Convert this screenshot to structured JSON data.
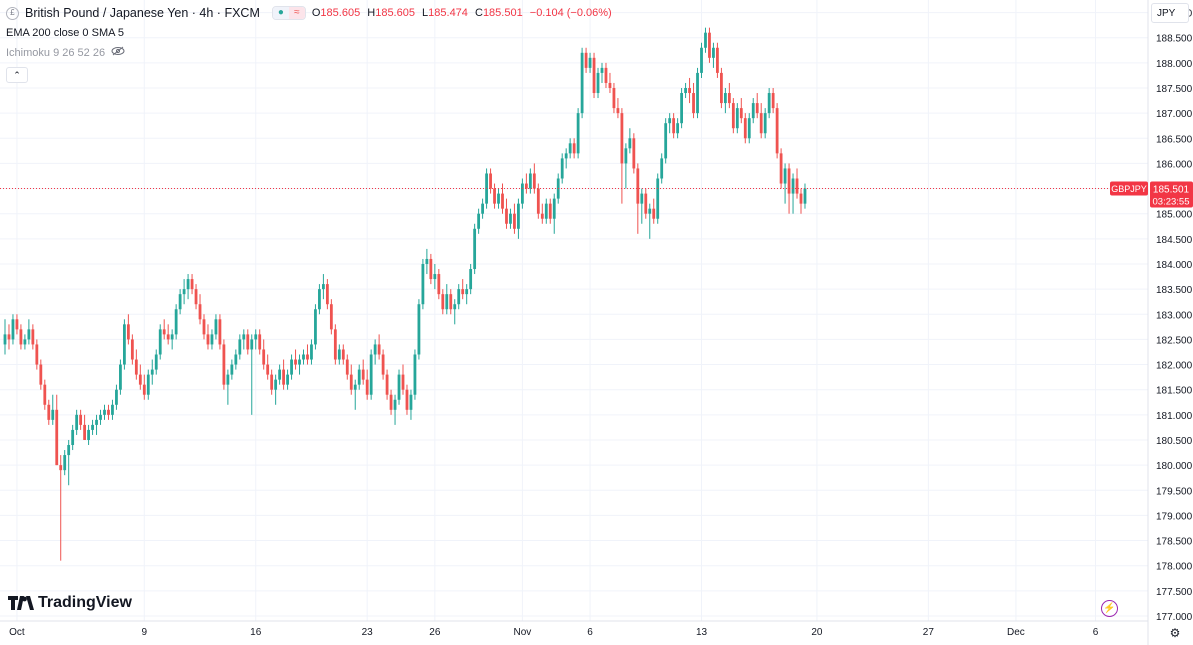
{
  "header": {
    "symbol_logo": "£",
    "title": "British Pound / Japanese Yen · 4h · FXCM",
    "ohlc": {
      "o_label": "O",
      "o": "185.605",
      "h_label": "H",
      "h": "185.605",
      "l_label": "L",
      "l": "185.474",
      "c_label": "C",
      "c": "185.501",
      "change": "−0.104 (−0.06%)"
    },
    "indicator_1": "EMA 200 close 0 SMA 5",
    "indicator_2": "Ichimoku 9 26 52 26",
    "collapse_glyph": "⌃"
  },
  "currency_selector": "JPY",
  "branding": "TradingView",
  "price_tag": {
    "symbol": "GBPJPY",
    "price": "185.501",
    "countdown": "03:23:55"
  },
  "colors": {
    "up": "#26a69a",
    "down": "#ef5350",
    "price_line": "#f23645",
    "grid": "#f0f3fa",
    "axis_text": "#131722"
  },
  "icons": {
    "settings": "gear-icon",
    "lightning": "lightning-icon",
    "visibility": "eye-off-icon"
  },
  "chart_data": {
    "type": "candlestick",
    "title": "British Pound / Japanese Yen · 4h · FXCM",
    "y_axis": {
      "ticks": [
        "189.000",
        "188.500",
        "188.000",
        "187.500",
        "187.000",
        "186.500",
        "186.000",
        "185.500",
        "185.000",
        "184.500",
        "184.000",
        "183.500",
        "183.000",
        "182.500",
        "182.000",
        "181.500",
        "181.000",
        "180.500",
        "180.000",
        "179.500",
        "179.000",
        "178.500",
        "178.000",
        "177.500",
        "177.000"
      ],
      "range": [
        176.9,
        189.25
      ]
    },
    "x_axis": {
      "labels": [
        "Oct",
        "9",
        "16",
        "23",
        "26",
        "Nov",
        "6",
        "13",
        "20",
        "27",
        "Dec",
        "6"
      ],
      "label_bars": [
        3,
        35,
        63,
        91,
        108,
        130,
        147,
        175,
        204,
        232,
        254,
        274
      ]
    },
    "last_price": 185.501,
    "candles": [
      [
        182.4,
        182.9,
        182.2,
        182.6
      ],
      [
        182.6,
        182.8,
        182.3,
        182.5
      ],
      [
        182.5,
        183.0,
        182.4,
        182.9
      ],
      [
        182.9,
        183.0,
        182.6,
        182.7
      ],
      [
        182.7,
        182.8,
        182.3,
        182.4
      ],
      [
        182.4,
        182.6,
        182.3,
        182.5
      ],
      [
        182.5,
        182.9,
        182.4,
        182.7
      ],
      [
        182.7,
        182.8,
        182.3,
        182.4
      ],
      [
        182.4,
        182.5,
        181.9,
        182.0
      ],
      [
        182.0,
        182.1,
        181.5,
        181.6
      ],
      [
        181.6,
        181.7,
        181.1,
        181.2
      ],
      [
        181.2,
        181.3,
        180.8,
        180.9
      ],
      [
        180.9,
        181.4,
        180.8,
        181.1
      ],
      [
        181.1,
        181.4,
        180.0,
        180.0
      ],
      [
        180.0,
        180.2,
        178.1,
        179.9
      ],
      [
        179.9,
        180.3,
        179.8,
        180.2
      ],
      [
        180.2,
        180.5,
        179.6,
        180.4
      ],
      [
        180.4,
        180.8,
        180.3,
        180.7
      ],
      [
        180.7,
        181.1,
        180.6,
        181.0
      ],
      [
        181.0,
        181.1,
        180.7,
        180.8
      ],
      [
        180.8,
        181.0,
        180.5,
        180.5
      ],
      [
        180.5,
        180.8,
        180.4,
        180.7
      ],
      [
        180.7,
        180.9,
        180.6,
        180.8
      ],
      [
        180.8,
        181.0,
        180.6,
        180.9
      ],
      [
        180.9,
        181.1,
        180.8,
        181.0
      ],
      [
        181.0,
        181.2,
        180.9,
        181.1
      ],
      [
        181.1,
        181.2,
        180.9,
        181.0
      ],
      [
        181.0,
        181.3,
        180.9,
        181.2
      ],
      [
        181.2,
        181.6,
        181.1,
        181.5
      ],
      [
        181.5,
        182.1,
        181.4,
        182.0
      ],
      [
        182.0,
        182.9,
        181.9,
        182.8
      ],
      [
        182.8,
        183.0,
        182.4,
        182.5
      ],
      [
        182.5,
        182.6,
        182.0,
        182.1
      ],
      [
        182.1,
        182.3,
        181.7,
        181.8
      ],
      [
        181.8,
        182.0,
        181.5,
        181.6
      ],
      [
        181.6,
        181.8,
        181.3,
        181.4
      ],
      [
        181.4,
        181.9,
        181.3,
        181.8
      ],
      [
        181.8,
        182.1,
        181.6,
        181.9
      ],
      [
        181.9,
        182.3,
        181.8,
        182.2
      ],
      [
        182.2,
        182.8,
        182.1,
        182.7
      ],
      [
        182.7,
        182.9,
        182.5,
        182.6
      ],
      [
        182.6,
        182.8,
        182.4,
        182.5
      ],
      [
        182.5,
        182.7,
        182.3,
        182.6
      ],
      [
        182.6,
        183.2,
        182.5,
        183.1
      ],
      [
        183.1,
        183.5,
        183.0,
        183.4
      ],
      [
        183.4,
        183.7,
        183.2,
        183.5
      ],
      [
        183.5,
        183.8,
        183.3,
        183.7
      ],
      [
        183.7,
        183.8,
        183.4,
        183.5
      ],
      [
        183.5,
        183.6,
        183.1,
        183.2
      ],
      [
        183.2,
        183.4,
        182.8,
        182.9
      ],
      [
        182.9,
        183.0,
        182.5,
        182.6
      ],
      [
        182.6,
        182.8,
        182.3,
        182.4
      ],
      [
        182.4,
        182.7,
        182.3,
        182.6
      ],
      [
        182.6,
        183.0,
        182.5,
        182.9
      ],
      [
        182.9,
        183.0,
        182.3,
        182.4
      ],
      [
        182.4,
        182.5,
        181.5,
        181.6
      ],
      [
        181.6,
        181.9,
        181.2,
        181.8
      ],
      [
        181.8,
        182.1,
        181.7,
        182.0
      ],
      [
        182.0,
        182.3,
        181.9,
        182.2
      ],
      [
        182.2,
        182.6,
        182.1,
        182.5
      ],
      [
        182.5,
        182.7,
        182.3,
        182.6
      ],
      [
        182.6,
        182.7,
        182.2,
        182.3
      ],
      [
        182.3,
        182.6,
        181.0,
        182.5
      ],
      [
        182.5,
        182.7,
        182.3,
        182.6
      ],
      [
        182.6,
        182.7,
        182.2,
        182.3
      ],
      [
        182.3,
        182.5,
        181.9,
        182.0
      ],
      [
        182.0,
        182.2,
        181.7,
        181.8
      ],
      [
        181.8,
        181.9,
        181.4,
        181.5
      ],
      [
        181.5,
        181.8,
        181.2,
        181.7
      ],
      [
        181.7,
        182.0,
        181.6,
        181.9
      ],
      [
        181.9,
        182.1,
        181.5,
        181.6
      ],
      [
        181.6,
        181.9,
        181.5,
        181.8
      ],
      [
        181.8,
        182.2,
        181.7,
        182.1
      ],
      [
        182.1,
        182.3,
        181.9,
        182.0
      ],
      [
        182.0,
        182.2,
        181.8,
        182.1
      ],
      [
        182.1,
        182.3,
        182.0,
        182.2
      ],
      [
        182.2,
        182.4,
        182.0,
        182.1
      ],
      [
        182.1,
        182.5,
        182.0,
        182.4
      ],
      [
        182.4,
        183.2,
        182.3,
        183.1
      ],
      [
        183.1,
        183.6,
        183.0,
        183.5
      ],
      [
        183.5,
        183.8,
        183.3,
        183.6
      ],
      [
        183.6,
        183.7,
        183.1,
        183.2
      ],
      [
        183.2,
        183.3,
        182.6,
        182.7
      ],
      [
        182.7,
        182.8,
        182.0,
        182.1
      ],
      [
        182.1,
        182.4,
        182.0,
        182.3
      ],
      [
        182.3,
        182.4,
        182.0,
        182.1
      ],
      [
        182.1,
        182.2,
        181.7,
        181.8
      ],
      [
        181.8,
        182.0,
        181.4,
        181.5
      ],
      [
        181.5,
        181.7,
        181.1,
        181.6
      ],
      [
        181.6,
        182.0,
        181.5,
        181.9
      ],
      [
        181.9,
        182.1,
        181.6,
        181.7
      ],
      [
        181.7,
        181.9,
        181.3,
        181.4
      ],
      [
        181.4,
        182.3,
        181.3,
        182.2
      ],
      [
        182.2,
        182.5,
        182.0,
        182.4
      ],
      [
        182.4,
        182.6,
        182.1,
        182.2
      ],
      [
        182.2,
        182.3,
        181.7,
        181.8
      ],
      [
        181.8,
        181.9,
        181.3,
        181.4
      ],
      [
        181.4,
        181.5,
        181.0,
        181.1
      ],
      [
        181.1,
        181.4,
        180.8,
        181.3
      ],
      [
        181.3,
        181.9,
        181.2,
        181.8
      ],
      [
        181.8,
        182.0,
        181.4,
        181.5
      ],
      [
        181.5,
        181.6,
        181.0,
        181.1
      ],
      [
        181.1,
        181.5,
        180.9,
        181.4
      ],
      [
        181.4,
        182.3,
        181.3,
        182.2
      ],
      [
        182.2,
        183.3,
        182.1,
        183.2
      ],
      [
        183.2,
        184.1,
        183.1,
        184.0
      ],
      [
        184.0,
        184.3,
        183.8,
        184.1
      ],
      [
        184.1,
        184.2,
        183.6,
        183.7
      ],
      [
        183.7,
        184.0,
        183.5,
        183.8
      ],
      [
        183.8,
        183.9,
        183.3,
        183.4
      ],
      [
        183.4,
        183.5,
        183.0,
        183.1
      ],
      [
        183.1,
        183.6,
        183.0,
        183.4
      ],
      [
        183.4,
        183.5,
        183.0,
        183.1
      ],
      [
        183.1,
        183.3,
        182.8,
        183.2
      ],
      [
        183.2,
        183.6,
        183.1,
        183.5
      ],
      [
        183.5,
        183.7,
        183.3,
        183.4
      ],
      [
        183.4,
        183.6,
        183.2,
        183.5
      ],
      [
        183.5,
        184.0,
        183.4,
        183.9
      ],
      [
        183.9,
        184.8,
        183.8,
        184.7
      ],
      [
        184.7,
        185.1,
        184.6,
        185.0
      ],
      [
        185.0,
        185.3,
        184.9,
        185.2
      ],
      [
        185.2,
        185.9,
        185.1,
        185.8
      ],
      [
        185.8,
        185.9,
        185.4,
        185.5
      ],
      [
        185.5,
        185.6,
        185.1,
        185.2
      ],
      [
        185.2,
        185.5,
        185.1,
        185.4
      ],
      [
        185.4,
        185.6,
        185.0,
        185.1
      ],
      [
        185.1,
        185.3,
        184.7,
        184.8
      ],
      [
        184.8,
        185.1,
        184.7,
        185.0
      ],
      [
        185.0,
        185.2,
        184.6,
        184.7
      ],
      [
        184.7,
        185.3,
        184.5,
        185.2
      ],
      [
        185.2,
        185.7,
        185.1,
        185.6
      ],
      [
        185.6,
        185.8,
        185.4,
        185.5
      ],
      [
        185.5,
        185.9,
        185.4,
        185.8
      ],
      [
        185.8,
        186.0,
        185.4,
        185.5
      ],
      [
        185.5,
        185.6,
        184.9,
        185.0
      ],
      [
        185.0,
        185.2,
        184.8,
        184.9
      ],
      [
        184.9,
        185.3,
        184.8,
        185.2
      ],
      [
        185.2,
        185.3,
        184.8,
        184.9
      ],
      [
        184.9,
        185.4,
        184.6,
        185.3
      ],
      [
        185.3,
        185.8,
        185.2,
        185.7
      ],
      [
        185.7,
        186.2,
        185.6,
        186.1
      ],
      [
        186.1,
        186.3,
        185.9,
        186.2
      ],
      [
        186.2,
        186.5,
        186.1,
        186.4
      ],
      [
        186.4,
        186.5,
        186.1,
        186.2
      ],
      [
        186.2,
        187.1,
        186.1,
        187.0
      ],
      [
        187.0,
        188.3,
        186.9,
        188.2
      ],
      [
        188.2,
        188.3,
        187.8,
        187.9
      ],
      [
        187.9,
        188.2,
        187.8,
        188.1
      ],
      [
        188.1,
        188.2,
        187.3,
        187.4
      ],
      [
        187.4,
        187.9,
        187.3,
        187.8
      ],
      [
        187.8,
        188.0,
        187.6,
        187.9
      ],
      [
        187.9,
        188.0,
        187.5,
        187.6
      ],
      [
        187.6,
        187.8,
        187.4,
        187.5
      ],
      [
        187.5,
        187.6,
        187.0,
        187.1
      ],
      [
        187.1,
        187.3,
        186.9,
        187.0
      ],
      [
        187.0,
        187.1,
        185.2,
        186.0
      ],
      [
        186.0,
        186.4,
        185.5,
        186.3
      ],
      [
        186.3,
        186.7,
        186.2,
        186.5
      ],
      [
        186.5,
        186.6,
        185.8,
        185.9
      ],
      [
        185.9,
        186.0,
        184.6,
        185.2
      ],
      [
        185.2,
        185.5,
        184.8,
        185.4
      ],
      [
        185.4,
        185.5,
        184.9,
        185.0
      ],
      [
        185.0,
        185.2,
        184.5,
        185.1
      ],
      [
        185.1,
        185.3,
        184.8,
        184.9
      ],
      [
        184.9,
        185.8,
        184.8,
        185.7
      ],
      [
        185.7,
        186.2,
        185.6,
        186.1
      ],
      [
        186.1,
        186.9,
        186.0,
        186.8
      ],
      [
        186.8,
        187.0,
        186.6,
        186.9
      ],
      [
        186.9,
        187.0,
        186.5,
        186.6
      ],
      [
        186.6,
        186.9,
        186.5,
        186.8
      ],
      [
        186.8,
        187.5,
        186.7,
        187.4
      ],
      [
        187.4,
        187.6,
        187.3,
        187.5
      ],
      [
        187.5,
        187.7,
        187.2,
        187.4
      ],
      [
        187.4,
        187.6,
        186.9,
        187.0
      ],
      [
        187.0,
        187.9,
        186.9,
        187.8
      ],
      [
        187.8,
        188.4,
        187.7,
        188.3
      ],
      [
        188.3,
        188.7,
        188.2,
        188.6
      ],
      [
        188.6,
        188.7,
        188.0,
        188.1
      ],
      [
        188.1,
        188.4,
        187.9,
        188.3
      ],
      [
        188.3,
        188.4,
        187.7,
        187.8
      ],
      [
        187.8,
        187.9,
        187.1,
        187.2
      ],
      [
        187.2,
        187.5,
        187.0,
        187.4
      ],
      [
        187.4,
        187.6,
        187.1,
        187.2
      ],
      [
        187.2,
        187.3,
        186.6,
        186.7
      ],
      [
        186.7,
        187.2,
        186.6,
        187.1
      ],
      [
        187.1,
        187.3,
        186.8,
        186.9
      ],
      [
        186.9,
        187.0,
        186.4,
        186.5
      ],
      [
        186.5,
        187.0,
        186.4,
        186.9
      ],
      [
        186.9,
        187.3,
        186.8,
        187.2
      ],
      [
        187.2,
        187.4,
        186.9,
        187.0
      ],
      [
        187.0,
        187.2,
        186.5,
        186.6
      ],
      [
        186.6,
        187.1,
        186.5,
        187.0
      ],
      [
        187.0,
        187.5,
        186.9,
        187.4
      ],
      [
        187.4,
        187.5,
        187.0,
        187.1
      ],
      [
        187.1,
        187.2,
        186.1,
        186.2
      ],
      [
        186.2,
        186.3,
        185.5,
        185.6
      ],
      [
        185.6,
        186.0,
        185.2,
        185.9
      ],
      [
        185.9,
        186.0,
        185.0,
        185.4
      ],
      [
        185.4,
        185.8,
        185.0,
        185.7
      ],
      [
        185.7,
        185.9,
        185.3,
        185.4
      ],
      [
        185.4,
        185.5,
        185.0,
        185.2
      ],
      [
        185.2,
        185.6,
        185.1,
        185.5
      ]
    ]
  }
}
